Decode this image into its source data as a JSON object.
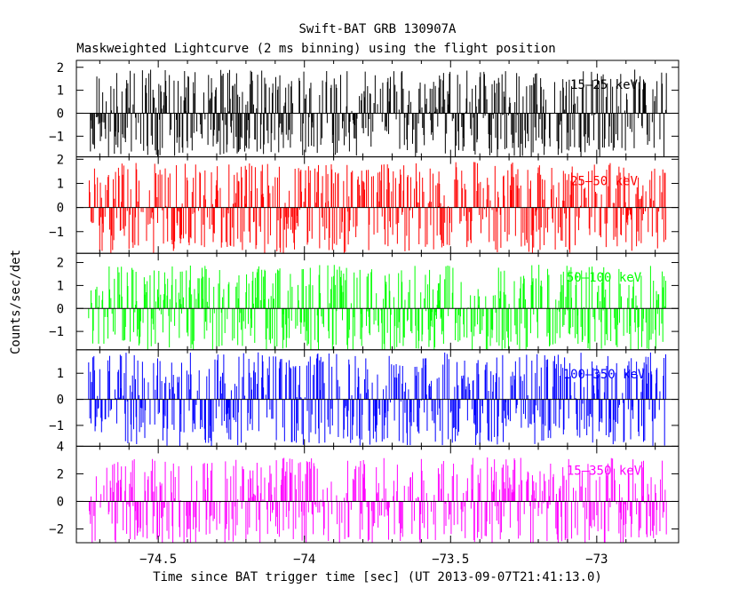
{
  "chart_data": {
    "type": "line",
    "title": "Swift-BAT GRB 130907A",
    "subtitle": "Maskweighted Lightcurve (2 ms binning) using the flight position",
    "xlabel": "Time since BAT trigger time [sec] (UT 2013-09-07T21:41:13.0)",
    "ylabel": "Counts/sec/det",
    "xlim": [
      -74.78,
      -72.72
    ],
    "x_ticks": [
      -74.5,
      -74,
      -73.5,
      -73
    ],
    "x_tick_labels": [
      "−74.5",
      "−74",
      "−73.5",
      "−73"
    ],
    "x_start": -74.74,
    "x_end": -72.76,
    "bin_width": 0.002,
    "grid": false,
    "panels": [
      {
        "band": "15-25 keV",
        "label": "15–25 keV",
        "color": "#000000",
        "ylim": [
          -1.9,
          2.3
        ],
        "yticks": [
          -1,
          0,
          1,
          2
        ],
        "ytick_labels": [
          "−1",
          "0",
          "1",
          "2"
        ],
        "amplitude": 1.9,
        "seed": 11
      },
      {
        "band": "25-50 keV",
        "label": "25–50 keV",
        "color": "#ff0000",
        "ylim": [
          -1.9,
          2.1
        ],
        "yticks": [
          -1,
          0,
          1,
          2
        ],
        "ytick_labels": [
          "−1",
          "0",
          "1",
          "2"
        ],
        "amplitude": 1.9,
        "seed": 23
      },
      {
        "band": "50-100 keV",
        "label": "50–100 keV",
        "color": "#00ff00",
        "ylim": [
          -1.8,
          2.4
        ],
        "yticks": [
          -1,
          0,
          1,
          2
        ],
        "ytick_labels": [
          "−1",
          "0",
          "1",
          "2"
        ],
        "amplitude": 1.9,
        "seed": 37
      },
      {
        "band": "100-350 keV",
        "label": "100–350 keV",
        "color": "#0000ff",
        "ylim": [
          -1.8,
          1.9
        ],
        "yticks": [
          -1,
          0,
          1
        ],
        "ytick_labels": [
          "−1",
          "0",
          "1"
        ],
        "amplitude": 1.8,
        "seed": 51
      },
      {
        "band": "15-350 keV",
        "label": "15–350 keV",
        "color": "#ff00ff",
        "ylim": [
          -3.0,
          4.0
        ],
        "yticks": [
          -2,
          0,
          2,
          4
        ],
        "ytick_labels": [
          "−2",
          "0",
          "2",
          "4"
        ],
        "amplitude": 3.2,
        "seed": 67
      }
    ]
  }
}
